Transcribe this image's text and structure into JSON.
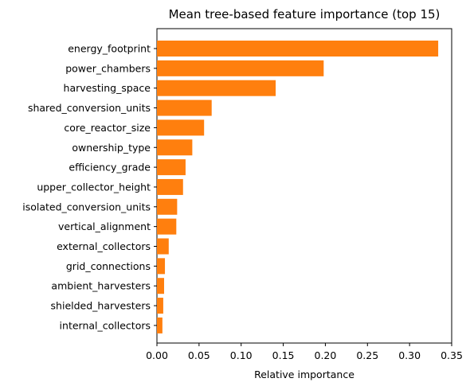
{
  "chart_data": {
    "type": "bar",
    "orientation": "horizontal",
    "title": "Mean tree-based feature importance (top 15)",
    "xlabel": "Relative importance",
    "ylabel": "",
    "xlim": [
      0,
      0.35
    ],
    "xticks": [
      0.0,
      0.05,
      0.1,
      0.15,
      0.2,
      0.25,
      0.3,
      0.35
    ],
    "xtick_labels": [
      "0.00",
      "0.05",
      "0.10",
      "0.15",
      "0.20",
      "0.25",
      "0.30",
      "0.35"
    ],
    "grid": false,
    "bar_color": "#ff7f0e",
    "categories": [
      "energy_footprint",
      "power_chambers",
      "harvesting_space",
      "shared_conversion_units",
      "core_reactor_size",
      "ownership_type",
      "efficiency_grade",
      "upper_collector_height",
      "isolated_conversion_units",
      "vertical_alignment",
      "external_collectors",
      "grid_connections",
      "ambient_harvesters",
      "shielded_harvesters",
      "internal_collectors"
    ],
    "values": [
      0.334,
      0.198,
      0.141,
      0.065,
      0.056,
      0.042,
      0.034,
      0.031,
      0.024,
      0.023,
      0.014,
      0.0095,
      0.0085,
      0.0075,
      0.0065
    ]
  }
}
